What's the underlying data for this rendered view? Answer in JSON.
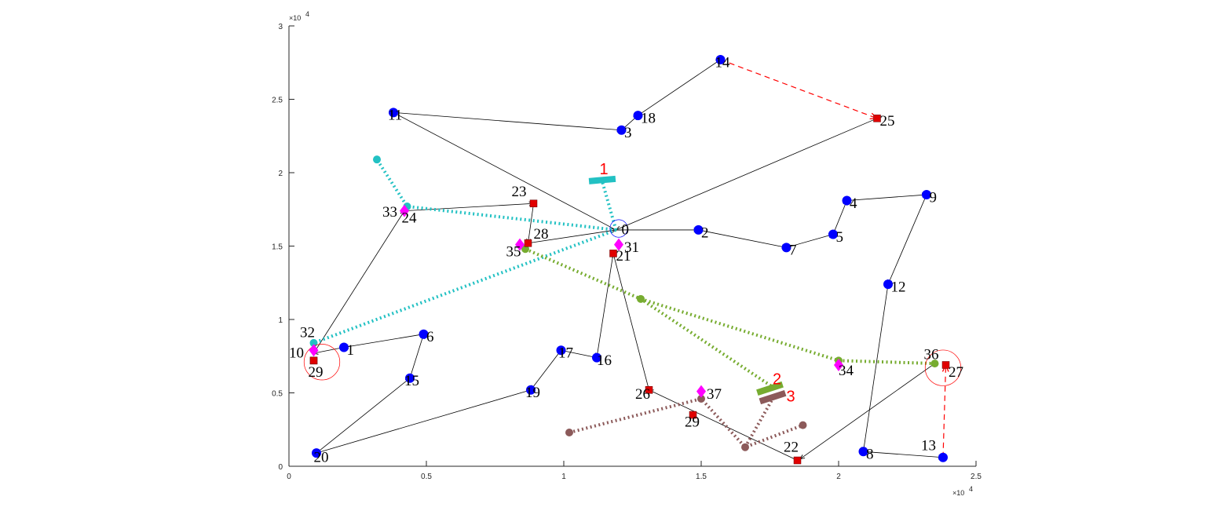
{
  "chart_data": {
    "type": "scatter",
    "title": "",
    "xlabel": "",
    "ylabel": "",
    "xlim": [
      0,
      2.5
    ],
    "ylim": [
      0,
      3
    ],
    "x_exponent": "×10",
    "y_exponent": "×10",
    "exponent_power": "4",
    "x_ticks": [
      {
        "value": 0,
        "label": "0"
      },
      {
        "value": 0.5,
        "label": "0.5"
      },
      {
        "value": 1,
        "label": "1"
      },
      {
        "value": 1.5,
        "label": "1.5"
      },
      {
        "value": 2,
        "label": "2"
      },
      {
        "value": 2.5,
        "label": "2.5"
      }
    ],
    "y_ticks": [
      {
        "value": 0,
        "label": "0"
      },
      {
        "value": 0.5,
        "label": "0.5"
      },
      {
        "value": 1,
        "label": "1"
      },
      {
        "value": 1.5,
        "label": "1.5"
      },
      {
        "value": 2,
        "label": "2"
      },
      {
        "value": 2.5,
        "label": "2.5"
      },
      {
        "value": 3,
        "label": "3"
      }
    ],
    "grid": false,
    "legend": "none",
    "colors": {
      "blue": "#0000ff",
      "red": "#e00000",
      "magenta": "#ff00ff",
      "cyan": "#22c1c3",
      "green": "#77ac30",
      "brown": "#8c5a5a",
      "route": "#000000",
      "dashed": "#ff0000"
    },
    "customers": [
      {
        "id": "1",
        "x": 0.2,
        "y": 0.81
      },
      {
        "id": "2",
        "x": 1.49,
        "y": 1.61
      },
      {
        "id": "3",
        "x": 1.21,
        "y": 2.29
      },
      {
        "id": "4",
        "x": 2.03,
        "y": 1.81
      },
      {
        "id": "5",
        "x": 1.98,
        "y": 1.58
      },
      {
        "id": "6",
        "x": 0.49,
        "y": 0.9
      },
      {
        "id": "7",
        "x": 1.81,
        "y": 1.49
      },
      {
        "id": "8",
        "x": 2.09,
        "y": 0.1
      },
      {
        "id": "9",
        "x": 2.32,
        "y": 1.85
      },
      {
        "id": "11",
        "x": 0.38,
        "y": 2.41
      },
      {
        "id": "12",
        "x": 2.18,
        "y": 1.24
      },
      {
        "id": "13",
        "x": 2.38,
        "y": 0.06
      },
      {
        "id": "14",
        "x": 1.57,
        "y": 2.77
      },
      {
        "id": "15",
        "x": 0.44,
        "y": 0.6
      },
      {
        "id": "16",
        "x": 1.12,
        "y": 0.74
      },
      {
        "id": "17",
        "x": 0.99,
        "y": 0.79
      },
      {
        "id": "18",
        "x": 1.27,
        "y": 2.39
      },
      {
        "id": "19",
        "x": 0.88,
        "y": 0.52
      },
      {
        "id": "20",
        "x": 0.1,
        "y": 0.09
      }
    ],
    "red_squares": [
      {
        "id": "10",
        "x": 0.09,
        "y": 0.72
      },
      {
        "id": "21",
        "x": 1.18,
        "y": 1.45
      },
      {
        "id": "22",
        "x": 1.85,
        "y": 0.04
      },
      {
        "id": "23",
        "x": 0.89,
        "y": 1.79
      },
      {
        "id": "25",
        "x": 2.14,
        "y": 2.37
      },
      {
        "id": "26",
        "x": 1.31,
        "y": 0.52
      },
      {
        "id": "27",
        "x": 2.39,
        "y": 0.69
      },
      {
        "id": "28",
        "x": 0.87,
        "y": 1.52
      },
      {
        "id": "29a",
        "x": 0.09,
        "y": 0.72
      },
      {
        "id": "29b",
        "x": 1.47,
        "y": 0.35
      }
    ],
    "magenta_diamonds": [
      {
        "id": "31",
        "x": 1.2,
        "y": 1.51
      },
      {
        "id": "33",
        "x": 0.42,
        "y": 1.74
      },
      {
        "id": "34",
        "x": 2.0,
        "y": 0.69
      },
      {
        "id": "35",
        "x": 0.84,
        "y": 1.51
      },
      {
        "id": "37",
        "x": 1.5,
        "y": 0.51
      },
      {
        "id": "32",
        "x": 0.09,
        "y": 0.79
      }
    ],
    "depot": {
      "x": 1.19,
      "y": 1.61,
      "label": "0"
    },
    "labels": [
      {
        "text": "0",
        "x": 1.21,
        "y": 1.58,
        "small": true
      },
      {
        "text": "1",
        "x": 0.21,
        "y": 0.76
      },
      {
        "text": "2",
        "x": 1.5,
        "y": 1.56
      },
      {
        "text": "3",
        "x": 1.22,
        "y": 2.24
      },
      {
        "text": "4",
        "x": 2.04,
        "y": 1.76
      },
      {
        "text": "5",
        "x": 1.99,
        "y": 1.53
      },
      {
        "text": "6",
        "x": 0.5,
        "y": 0.85
      },
      {
        "text": "7",
        "x": 1.82,
        "y": 1.44
      },
      {
        "text": "8",
        "x": 2.1,
        "y": 0.05
      },
      {
        "text": "9",
        "x": 2.33,
        "y": 1.8
      },
      {
        "text": "10",
        "x": 0.0,
        "y": 0.74
      },
      {
        "text": "11",
        "x": 0.36,
        "y": 2.36
      },
      {
        "text": "12",
        "x": 2.19,
        "y": 1.19
      },
      {
        "text": "13",
        "x": 2.3,
        "y": 0.11
      },
      {
        "text": "14",
        "x": 1.55,
        "y": 2.72
      },
      {
        "text": "15",
        "x": 0.42,
        "y": 0.55
      },
      {
        "text": "16",
        "x": 1.12,
        "y": 0.69
      },
      {
        "text": "17",
        "x": 0.98,
        "y": 0.74
      },
      {
        "text": "18",
        "x": 1.28,
        "y": 2.34
      },
      {
        "text": "19",
        "x": 0.86,
        "y": 0.47
      },
      {
        "text": "20",
        "x": 0.09,
        "y": 0.03
      },
      {
        "text": "21",
        "x": 1.19,
        "y": 1.4
      },
      {
        "text": "22",
        "x": 1.8,
        "y": 0.1
      },
      {
        "text": "23",
        "x": 0.81,
        "y": 1.84
      },
      {
        "text": "24",
        "x": 0.41,
        "y": 1.66
      },
      {
        "text": "25",
        "x": 2.15,
        "y": 2.32
      },
      {
        "text": "26",
        "x": 1.26,
        "y": 0.46
      },
      {
        "text": "27",
        "x": 2.4,
        "y": 0.61
      },
      {
        "text": "28",
        "x": 0.89,
        "y": 1.55
      },
      {
        "text": "29",
        "x": 0.07,
        "y": 0.61
      },
      {
        "text": "29",
        "x": 1.44,
        "y": 0.27
      },
      {
        "text": "31",
        "x": 1.22,
        "y": 1.46
      },
      {
        "text": "32",
        "x": 0.04,
        "y": 0.88
      },
      {
        "text": "33",
        "x": 0.34,
        "y": 1.7
      },
      {
        "text": "34",
        "x": 2.0,
        "y": 0.62
      },
      {
        "text": "35",
        "x": 0.79,
        "y": 1.43
      },
      {
        "text": "36",
        "x": 2.31,
        "y": 0.73
      },
      {
        "text": "37",
        "x": 1.52,
        "y": 0.46
      }
    ],
    "routes": [
      {
        "from": [
          1.19,
          1.61
        ],
        "to": [
          0.38,
          2.41
        ]
      },
      {
        "from": [
          0.38,
          2.41
        ],
        "to": [
          1.21,
          2.29
        ]
      },
      {
        "from": [
          1.21,
          2.29
        ],
        "to": [
          1.27,
          2.39
        ]
      },
      {
        "from": [
          1.27,
          2.39
        ],
        "to": [
          1.57,
          2.77
        ]
      },
      {
        "from": [
          2.14,
          2.37
        ],
        "to": [
          1.19,
          1.61
        ]
      },
      {
        "from": [
          1.19,
          1.61
        ],
        "to": [
          1.49,
          1.61
        ]
      },
      {
        "from": [
          1.49,
          1.61
        ],
        "to": [
          1.81,
          1.49
        ]
      },
      {
        "from": [
          1.81,
          1.49
        ],
        "to": [
          1.98,
          1.58
        ]
      },
      {
        "from": [
          1.98,
          1.58
        ],
        "to": [
          2.03,
          1.81
        ]
      },
      {
        "from": [
          2.03,
          1.81
        ],
        "to": [
          2.32,
          1.85
        ]
      },
      {
        "from": [
          2.32,
          1.85
        ],
        "to": [
          2.18,
          1.24
        ]
      },
      {
        "from": [
          2.18,
          1.24
        ],
        "to": [
          2.09,
          0.1
        ]
      },
      {
        "from": [
          2.09,
          0.1
        ],
        "to": [
          2.38,
          0.06
        ]
      },
      {
        "from": [
          2.35,
          0.7
        ],
        "to": [
          1.86,
          0.05
        ]
      },
      {
        "from": [
          1.85,
          0.04
        ],
        "to": [
          1.31,
          0.52
        ]
      },
      {
        "from": [
          1.31,
          0.52
        ],
        "to": [
          1.18,
          1.45
        ]
      },
      {
        "from": [
          1.18,
          1.45
        ],
        "to": [
          1.12,
          0.74
        ]
      },
      {
        "from": [
          1.12,
          0.74
        ],
        "to": [
          0.99,
          0.79
        ]
      },
      {
        "from": [
          0.99,
          0.79
        ],
        "to": [
          0.88,
          0.52
        ]
      },
      {
        "from": [
          0.88,
          0.52
        ],
        "to": [
          0.1,
          0.09
        ]
      },
      {
        "from": [
          0.1,
          0.09
        ],
        "to": [
          0.44,
          0.6
        ]
      },
      {
        "from": [
          0.44,
          0.6
        ],
        "to": [
          0.49,
          0.9
        ]
      },
      {
        "from": [
          0.49,
          0.9
        ],
        "to": [
          0.2,
          0.81
        ]
      },
      {
        "from": [
          0.2,
          0.81
        ],
        "to": [
          0.09,
          0.77
        ]
      },
      {
        "from": [
          0.09,
          0.77
        ],
        "to": [
          0.42,
          1.74
        ]
      },
      {
        "from": [
          0.42,
          1.74
        ],
        "to": [
          0.89,
          1.79
        ]
      },
      {
        "from": [
          0.89,
          1.79
        ],
        "to": [
          0.87,
          1.52
        ]
      },
      {
        "from": [
          0.87,
          1.52
        ],
        "to": [
          1.19,
          1.61
        ]
      }
    ],
    "dashed_routes": [
      {
        "from": [
          1.57,
          2.77
        ],
        "to": [
          2.14,
          2.37
        ]
      },
      {
        "from": [
          2.38,
          0.06
        ],
        "to": [
          2.39,
          0.69
        ]
      }
    ],
    "drone_paths": [
      {
        "color": "cyan",
        "points": [
          [
            1.19,
            1.61
          ],
          [
            0.43,
            1.77
          ],
          [
            0.32,
            2.09
          ]
        ]
      },
      {
        "color": "cyan",
        "points": [
          [
            1.19,
            1.61
          ],
          [
            0.09,
            0.84
          ]
        ]
      },
      {
        "color": "cyan",
        "points": [
          [
            1.19,
            1.61
          ],
          [
            1.14,
            1.94
          ]
        ]
      },
      {
        "color": "green",
        "points": [
          [
            0.86,
            1.48
          ],
          [
            1.28,
            1.14
          ],
          [
            1.76,
            0.54
          ]
        ]
      },
      {
        "color": "green",
        "points": [
          [
            1.28,
            1.14
          ],
          [
            2.0,
            0.72
          ],
          [
            2.35,
            0.7
          ]
        ]
      },
      {
        "color": "brown",
        "points": [
          [
            1.02,
            0.23
          ],
          [
            1.5,
            0.46
          ],
          [
            1.66,
            0.13
          ],
          [
            1.87,
            0.28
          ]
        ]
      },
      {
        "color": "brown",
        "points": [
          [
            1.66,
            0.13
          ],
          [
            1.76,
            0.46
          ]
        ]
      }
    ],
    "drone_nodes": [
      {
        "color": "cyan",
        "x": 0.32,
        "y": 2.09
      },
      {
        "color": "cyan",
        "x": 0.43,
        "y": 1.77
      },
      {
        "color": "cyan",
        "x": 0.09,
        "y": 0.84
      },
      {
        "color": "green",
        "x": 0.86,
        "y": 1.48
      },
      {
        "color": "green",
        "x": 1.28,
        "y": 1.14
      },
      {
        "color": "green",
        "x": 2.0,
        "y": 0.72
      },
      {
        "color": "green",
        "x": 2.35,
        "y": 0.7
      },
      {
        "color": "brown",
        "x": 1.02,
        "y": 0.23
      },
      {
        "color": "brown",
        "x": 1.5,
        "y": 0.46
      },
      {
        "color": "brown",
        "x": 1.66,
        "y": 0.13
      },
      {
        "color": "brown",
        "x": 1.87,
        "y": 0.28
      }
    ],
    "launch_sites": [
      {
        "label": "1",
        "color": "cyan",
        "x": 1.14,
        "y": 1.95,
        "angle": -5
      },
      {
        "label": "2",
        "color": "green",
        "x": 1.75,
        "y": 0.53,
        "angle": -18
      },
      {
        "label": "3",
        "color": "brown",
        "x": 1.76,
        "y": 0.47,
        "angle": -18
      }
    ],
    "zone_labels": [
      {
        "text": "1",
        "x": 1.13,
        "y": 1.99
      },
      {
        "text": "2",
        "x": 1.76,
        "y": 0.56
      },
      {
        "text": "3",
        "x": 1.81,
        "y": 0.44
      }
    ],
    "circles": [
      {
        "color": "blue",
        "x": 1.2,
        "y": 1.62,
        "r": 0.032
      },
      {
        "color": "red",
        "x": 0.12,
        "y": 0.71,
        "r": 0.065
      },
      {
        "color": "red",
        "x": 2.38,
        "y": 0.67,
        "r": 0.065
      }
    ]
  }
}
